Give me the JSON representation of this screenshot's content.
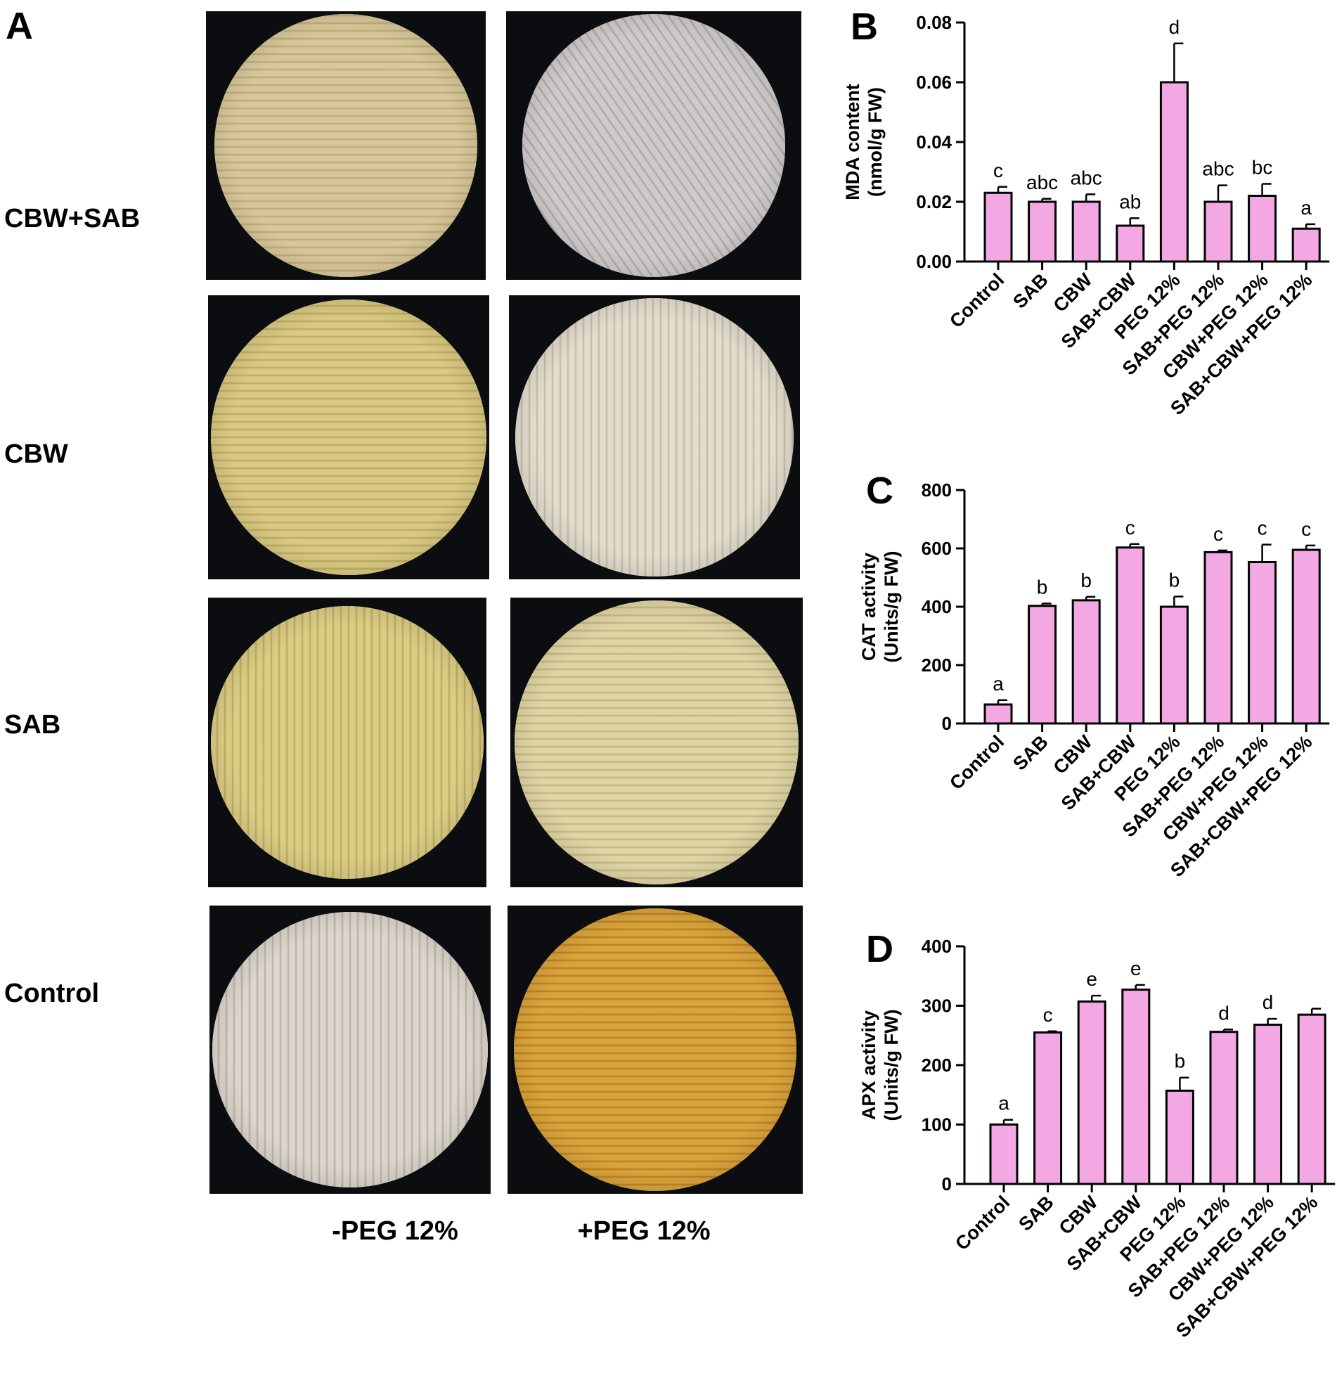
{
  "panel_a": {
    "letter": "A",
    "rows": [
      "CBW+SAB",
      "CBW",
      "SAB",
      "Control"
    ],
    "columns": [
      "-PEG 12%",
      "+PEG 12%"
    ],
    "images": [
      {
        "row": "CBW+SAB",
        "column": "-PEG 12%",
        "tint": "#d8c79a",
        "stripe": "#b9a874",
        "orientation": "horizontal"
      },
      {
        "row": "CBW+SAB",
        "column": "+PEG 12%",
        "tint": "#cfcbcb",
        "stripe": "#a8a2a0",
        "orientation": "diagonal"
      },
      {
        "row": "CBW",
        "column": "-PEG 12%",
        "tint": "#d9c982",
        "stripe": "#b8a75e",
        "orientation": "horizontal"
      },
      {
        "row": "CBW",
        "column": "+PEG 12%",
        "tint": "#e2ddce",
        "stripe": "#bdb6a3",
        "orientation": "vertical"
      },
      {
        "row": "SAB",
        "column": "-PEG 12%",
        "tint": "#dccd85",
        "stripe": "#b6a65c",
        "orientation": "vertical"
      },
      {
        "row": "SAB",
        "column": "+PEG 12%",
        "tint": "#e0d5a4",
        "stripe": "#c0b27c",
        "orientation": "horizontal"
      },
      {
        "row": "Control",
        "column": "-PEG 12%",
        "tint": "#dcd6cc",
        "stripe": "#b3aca0",
        "orientation": "vertical"
      },
      {
        "row": "Control",
        "column": "+PEG 12%",
        "tint": "#d9a43c",
        "stripe": "#b9791c",
        "orientation": "horizontal"
      }
    ]
  },
  "chart_data": [
    {
      "id": "B",
      "type": "bar",
      "letter": "B",
      "ylabel_lines": [
        "MDA content",
        "(nmol/g FW)"
      ],
      "categories": [
        "Control",
        "SAB",
        "CBW",
        "SAB+CBW",
        "PEG 12%",
        "SAB+PEG 12%",
        "CBW+PEG 12%",
        "SAB+CBW+PEG 12%"
      ],
      "values": [
        0.023,
        0.02,
        0.02,
        0.012,
        0.06,
        0.02,
        0.022,
        0.011
      ],
      "errors": [
        0.002,
        0.001,
        0.0025,
        0.0025,
        0.013,
        0.0055,
        0.004,
        0.0015
      ],
      "letters": [
        "c",
        "abc",
        "abc",
        "ab",
        "d",
        "abc",
        "bc",
        "a"
      ],
      "ylim": [
        0,
        0.08
      ],
      "yticks": [
        0,
        0.02,
        0.04,
        0.06,
        0.08
      ],
      "ytick_labels": [
        "0.00",
        "0.02",
        "0.04",
        "0.06",
        "0.08"
      ],
      "bar_color": "#f3a8e3"
    },
    {
      "id": "C",
      "type": "bar",
      "letter": "C",
      "ylabel_lines": [
        "CAT activity",
        "(Units/g FW)"
      ],
      "categories": [
        "Control",
        "SAB",
        "CBW",
        "SAB+CBW",
        "PEG 12%",
        "SAB+PEG 12%",
        "CBW+PEG 12%",
        "SAB+CBW+PEG 12%"
      ],
      "values": [
        65,
        403,
        422,
        603,
        400,
        587,
        553,
        595
      ],
      "errors": [
        15,
        8,
        12,
        12,
        35,
        6,
        60,
        15
      ],
      "letters": [
        "a",
        "b",
        "b",
        "c",
        "b",
        "c",
        "c",
        "c"
      ],
      "ylim": [
        0,
        800
      ],
      "yticks": [
        0,
        200,
        400,
        600,
        800
      ],
      "ytick_labels": [
        "0",
        "200",
        "400",
        "600",
        "800"
      ],
      "bar_color": "#f3a8e3"
    },
    {
      "id": "D",
      "type": "bar",
      "letter": "D",
      "ylabel_lines": [
        "APX activity",
        "(Units/g FW)"
      ],
      "categories": [
        "Control",
        "SAB",
        "CBW",
        "SAB+CBW",
        "PEG 12%",
        "SAB+PEG 12%",
        "CBW+PEG 12%",
        "SAB+CBW+PEG 12%"
      ],
      "values": [
        100,
        255,
        307,
        327,
        157,
        256,
        268,
        285
      ],
      "errors": [
        8,
        2,
        10,
        8,
        22,
        4,
        10,
        10
      ],
      "letters": [
        "a",
        "c",
        "e",
        "e",
        "b",
        "d",
        "d",
        ""
      ],
      "ylim": [
        0,
        400
      ],
      "yticks": [
        0,
        100,
        200,
        300,
        400
      ],
      "ytick_labels": [
        "0",
        "100",
        "200",
        "300",
        "400"
      ],
      "bar_color": "#f3a8e3"
    }
  ]
}
